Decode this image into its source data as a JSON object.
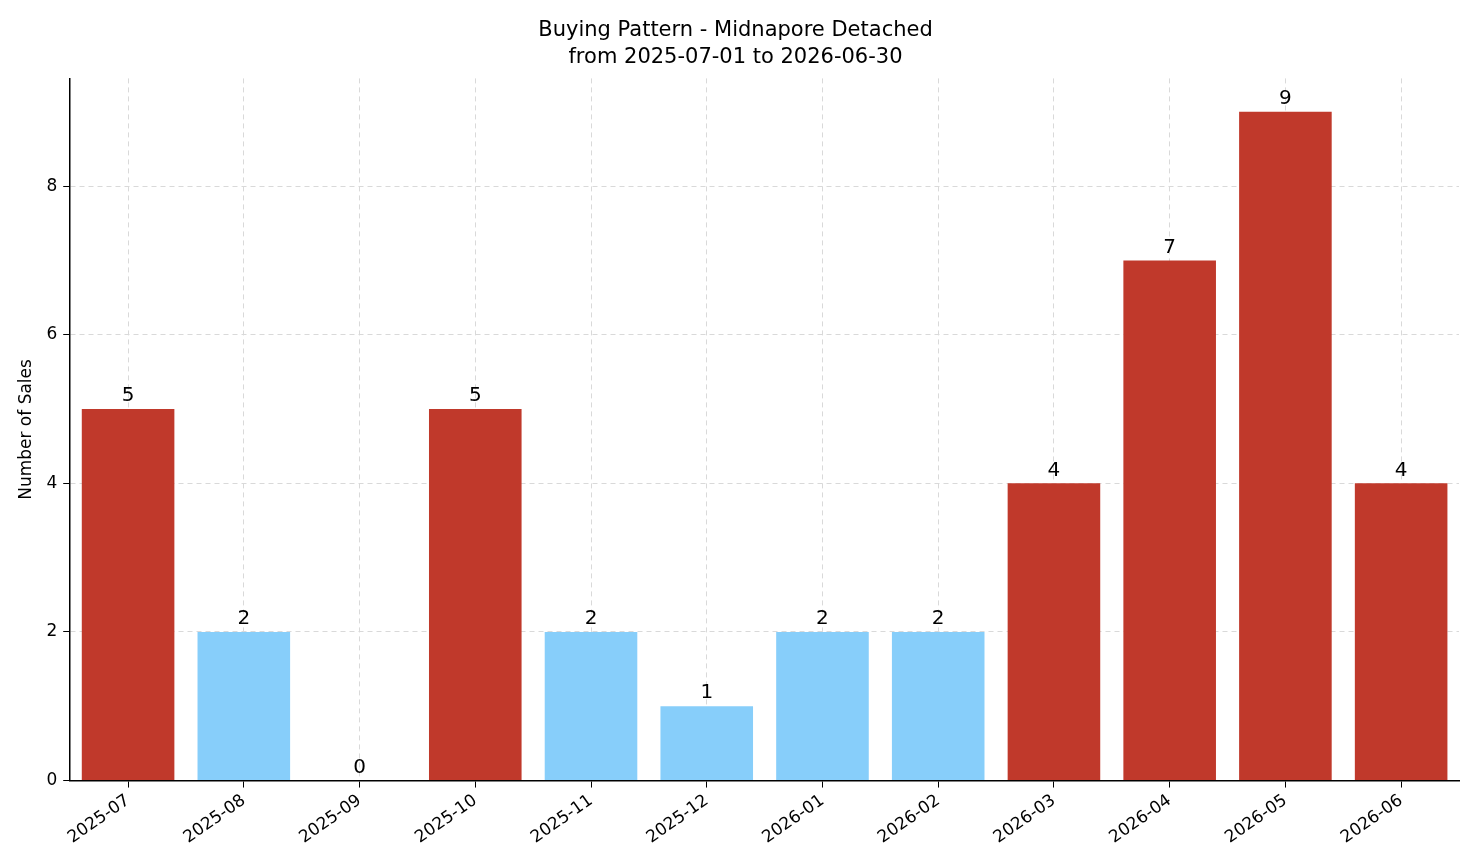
{
  "chart_data": {
    "type": "bar",
    "title": "Buying Pattern - Midnapore Detached",
    "subtitle": "from 2025-07-01 to 2026-06-30",
    "ylabel": "Number of Sales",
    "categories": [
      "2025-07",
      "2025-08",
      "2025-09",
      "2025-10",
      "2025-11",
      "2025-12",
      "2026-01",
      "2026-02",
      "2026-03",
      "2026-04",
      "2026-05",
      "2026-06"
    ],
    "values": [
      5,
      2,
      0,
      5,
      2,
      1,
      2,
      2,
      4,
      7,
      9,
      4
    ],
    "colors": [
      "#c0392b",
      "#87cefa",
      "#87cefa",
      "#c0392b",
      "#87cefa",
      "#87cefa",
      "#87cefa",
      "#87cefa",
      "#c0392b",
      "#c0392b",
      "#c0392b",
      "#c0392b"
    ],
    "ylim": [
      0,
      9.45
    ],
    "yticks": [
      0,
      2,
      4,
      6,
      8
    ],
    "grid": true,
    "data_labels": true
  }
}
